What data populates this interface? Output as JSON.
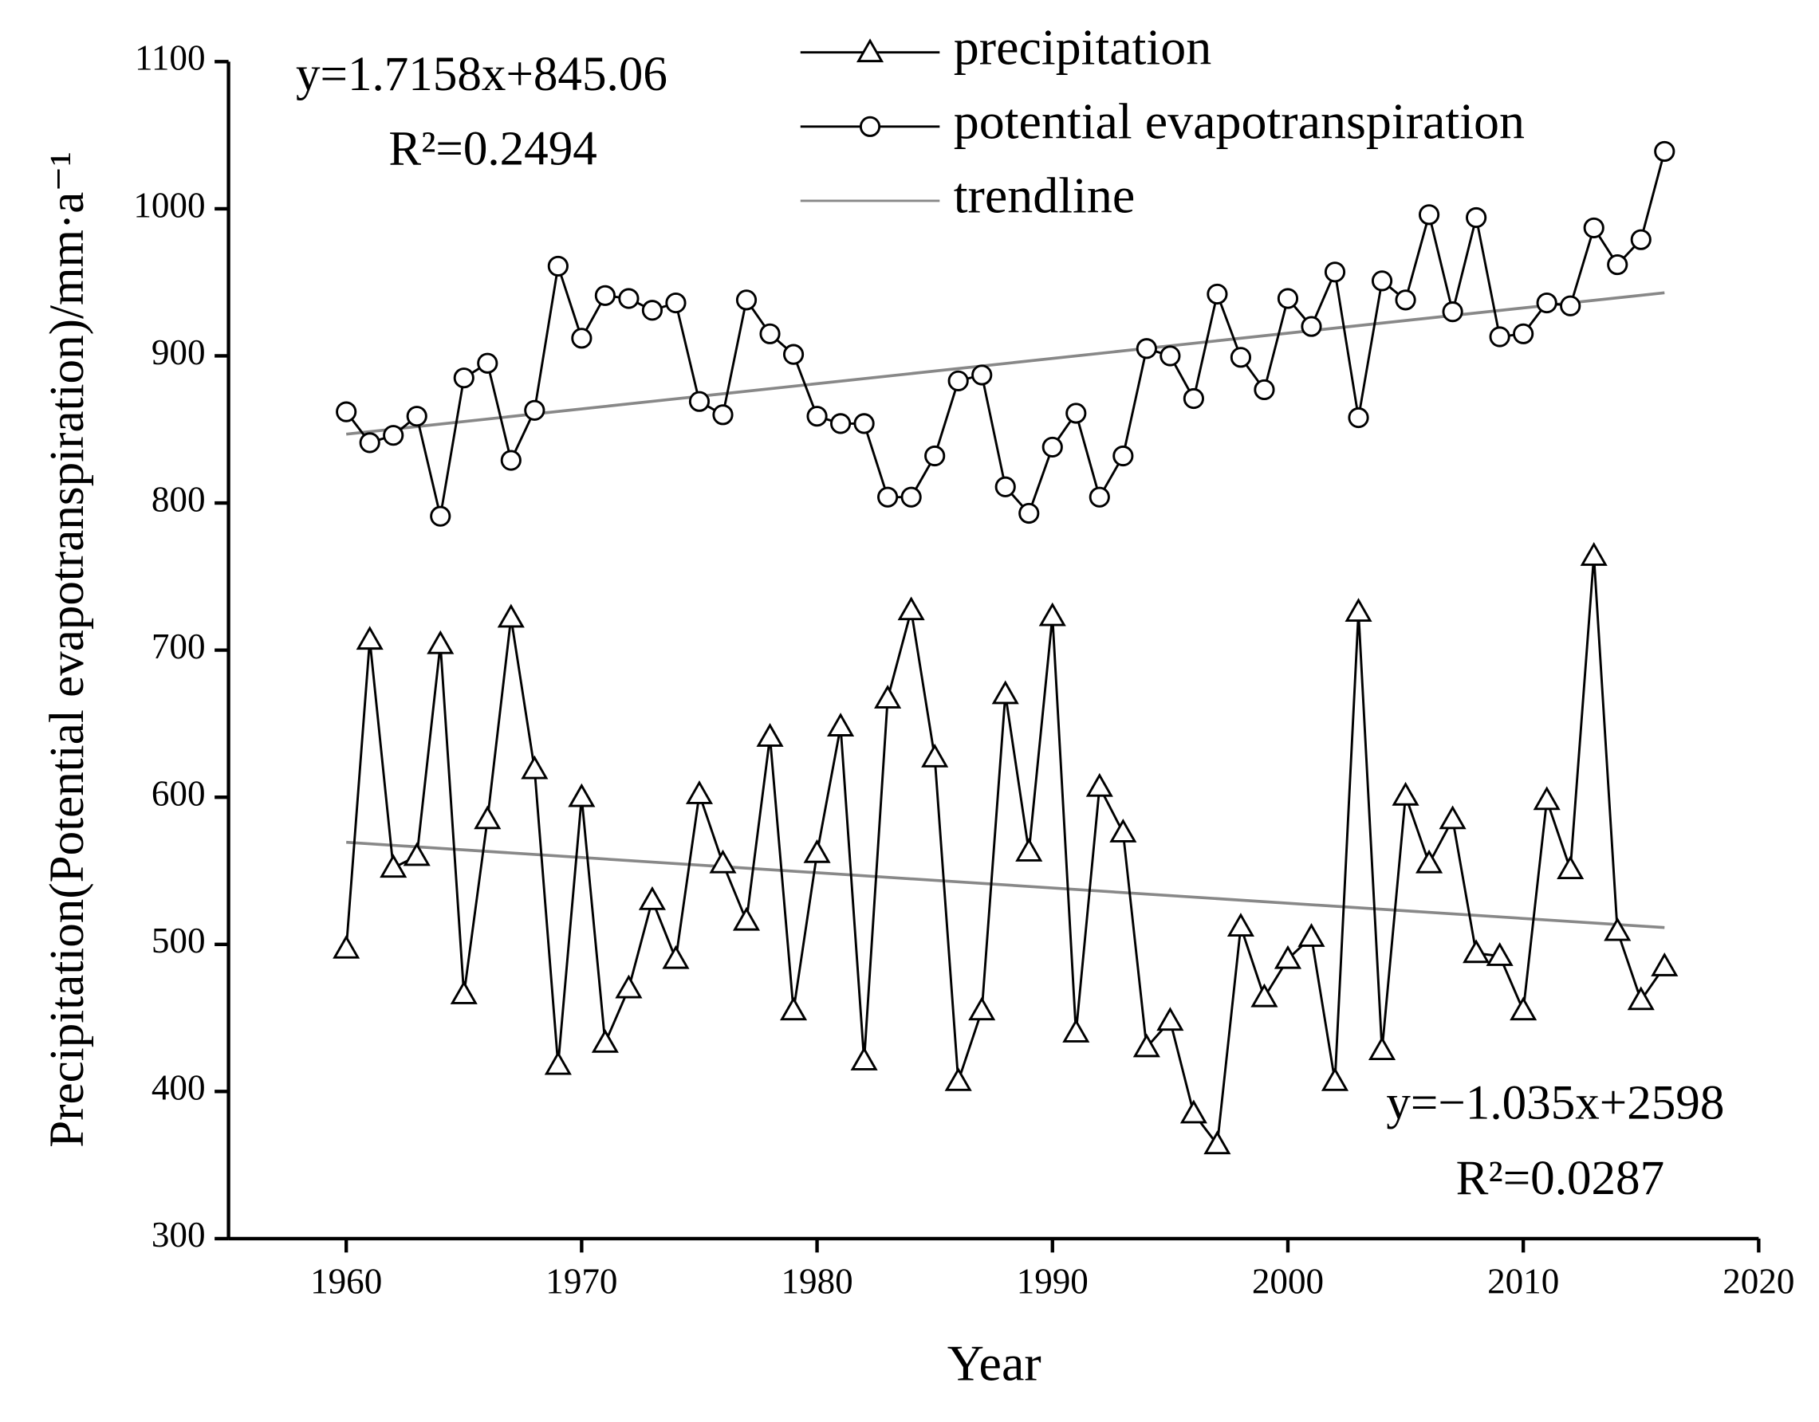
{
  "chart_data": {
    "type": "line",
    "xlabel": "Year",
    "ylabel": "Precipitation(Potential evapotranspiration)/mm·a⁻¹",
    "xlim": [
      1955,
      2020
    ],
    "xticks": [
      1960,
      1970,
      1980,
      1990,
      2000,
      2010,
      2020
    ],
    "ylim": [
      300,
      1100
    ],
    "yticks": [
      300,
      400,
      500,
      600,
      700,
      800,
      900,
      1000,
      1100
    ],
    "x": [
      1960,
      1961,
      1962,
      1963,
      1964,
      1965,
      1966,
      1967,
      1968,
      1969,
      1970,
      1971,
      1972,
      1973,
      1974,
      1975,
      1976,
      1977,
      1978,
      1979,
      1980,
      1981,
      1982,
      1983,
      1984,
      1985,
      1986,
      1987,
      1988,
      1989,
      1990,
      1991,
      1992,
      1993,
      1994,
      1995,
      1996,
      1997,
      1998,
      1999,
      2000,
      2001,
      2002,
      2003,
      2004,
      2005,
      2006,
      2007,
      2008,
      2009,
      2010,
      2011,
      2012,
      2013,
      2014,
      2015,
      2016
    ],
    "series": [
      {
        "name": "precipitation",
        "color": "#000000",
        "marker": "triangle",
        "values": [
          497,
          707,
          552,
          560,
          704,
          466,
          585,
          722,
          619,
          418,
          600,
          433,
          470,
          530,
          490,
          602,
          555,
          516,
          641,
          455,
          562,
          648,
          421,
          667,
          727,
          627,
          407,
          455,
          670,
          563,
          723,
          440,
          607,
          576,
          430,
          448,
          385,
          364,
          512,
          464,
          490,
          505,
          407,
          726,
          428,
          601,
          555,
          585,
          494,
          492,
          455,
          598,
          551,
          764,
          509,
          462,
          485
        ]
      },
      {
        "name": "potential evapotranspiration",
        "color": "#000000",
        "marker": "circle",
        "values": [
          862,
          841,
          846,
          859,
          791,
          885,
          895,
          829,
          863,
          961,
          912,
          941,
          939,
          931,
          936,
          869,
          860,
          938,
          915,
          901,
          859,
          854,
          854,
          804,
          804,
          832,
          883,
          887,
          811,
          793,
          838,
          861,
          804,
          832,
          905,
          900,
          871,
          942,
          899,
          877,
          939,
          920,
          957,
          858,
          951,
          938,
          996,
          930,
          994,
          913,
          915,
          936,
          934,
          987,
          962,
          979,
          1039
        ]
      }
    ],
    "trendline": {
      "name": "trendline",
      "color": "#888888",
      "lines": [
        {
          "x": [
            1960,
            2016
          ],
          "values": [
            846.8,
            942.9
          ]
        },
        {
          "x": [
            1960,
            2016
          ],
          "values": [
            569.4,
            511.4
          ]
        }
      ]
    },
    "annotations": [
      "y=1.7158x+845.06",
      "R²=0.2494",
      "y=−1.035x+2598",
      "R²=0.0287"
    ],
    "legend": "top"
  }
}
